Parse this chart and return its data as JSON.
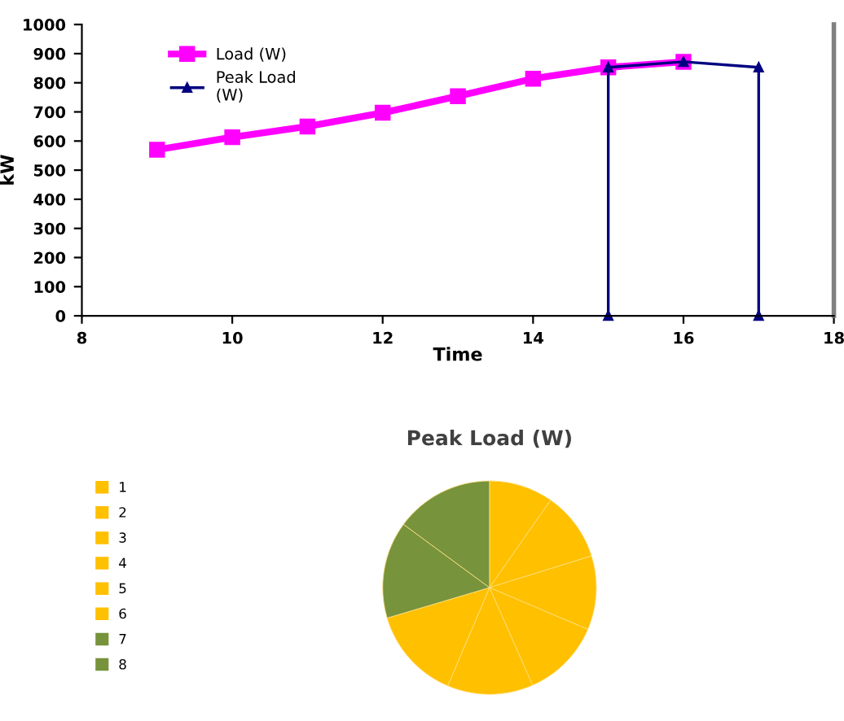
{
  "chart_data": [
    {
      "type": "line",
      "xlabel": "Time",
      "ylabel": "kW",
      "xlim": [
        8,
        18
      ],
      "xticks": [
        8,
        10,
        12,
        14,
        16,
        18
      ],
      "ylim": [
        0,
        1000
      ],
      "yticks": [
        0,
        100,
        200,
        300,
        400,
        500,
        600,
        700,
        800,
        900,
        1000
      ],
      "grid": false,
      "legend": "top left",
      "line_style": "solid",
      "series": [
        {
          "name": "Load (W)",
          "color": "#ff00ff",
          "marker": "square",
          "x": [
            9,
            10,
            11,
            12,
            13,
            14,
            15,
            16
          ],
          "values": [
            570,
            613,
            650,
            697,
            754,
            814,
            853,
            872
          ]
        },
        {
          "name": "Peak Load (W)",
          "color": "#000080",
          "marker": "triangle",
          "x": [
            15,
            15,
            16,
            17,
            17
          ],
          "values": [
            0,
            853,
            872,
            853,
            0
          ]
        }
      ]
    },
    {
      "type": "pie",
      "title": "Peak Load (W)",
      "categories": [
        "1",
        "2",
        "3",
        "4",
        "5",
        "6",
        "7",
        "8"
      ],
      "values": [
        9.7,
        10.5,
        11.2,
        12.0,
        13.0,
        14.0,
        14.7,
        14.9
      ],
      "colors": [
        "#ffc000",
        "#ffc000",
        "#ffc000",
        "#ffc000",
        "#ffc000",
        "#ffc000",
        "#77933c",
        "#77933c"
      ],
      "legend": "left"
    }
  ]
}
